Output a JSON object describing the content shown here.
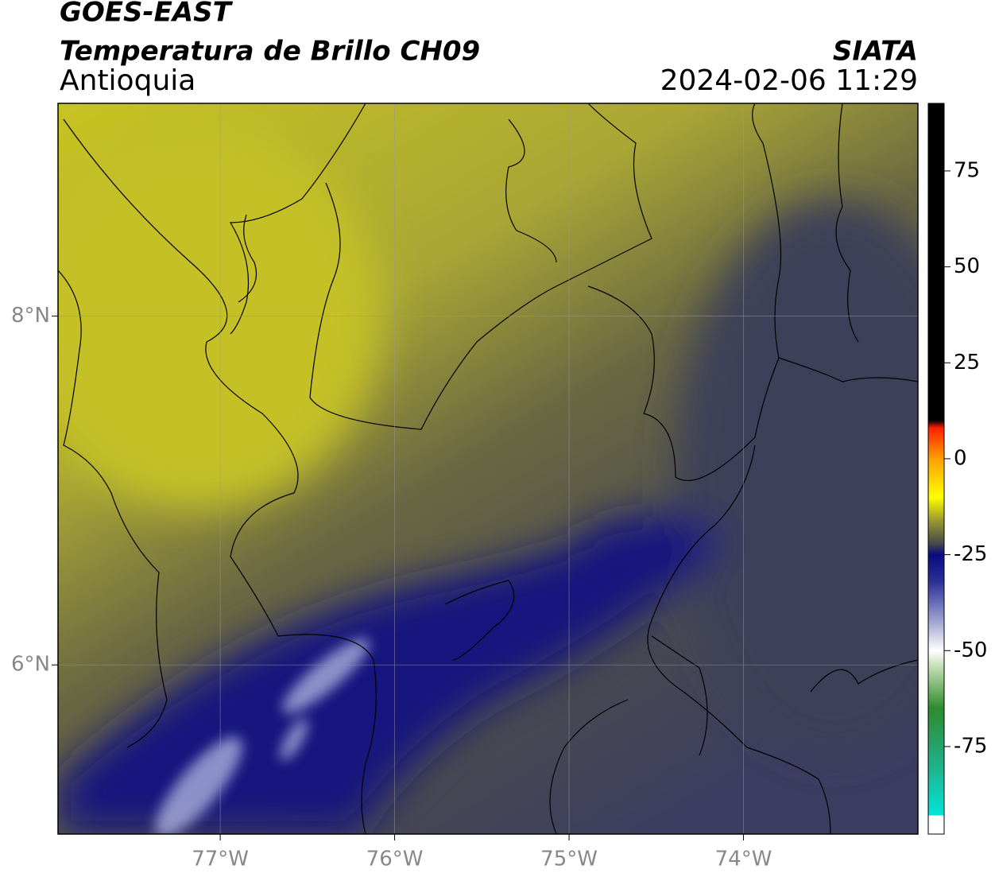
{
  "chart_data": {
    "type": "map",
    "title": "GOES-EAST",
    "subtitle": "Temperatura de Brillo CH09",
    "region": "Antioquia",
    "source": "SIATA",
    "timestamp": "2024-02-06 11:29",
    "xlim": [
      -77.93,
      -73.0
    ],
    "ylim": [
      5.03,
      9.22
    ],
    "xticks": [
      {
        "value": -77,
        "label": "77°W"
      },
      {
        "value": -76,
        "label": "76°W"
      },
      {
        "value": -75,
        "label": "75°W"
      },
      {
        "value": -74,
        "label": "74°W"
      }
    ],
    "yticks": [
      {
        "value": 8,
        "label": "8°N"
      },
      {
        "value": 6,
        "label": "6°N"
      }
    ],
    "grid": true,
    "clim": [
      -97.8,
      92.6
    ],
    "cticks": [
      75,
      50,
      25,
      0,
      -25,
      -50,
      -75
    ],
    "colormap": [
      {
        "value": -97.8,
        "color": "#ffffff"
      },
      {
        "value": -93,
        "color": "#ffffff"
      },
      {
        "value": -92.9,
        "color": "#00e5d8"
      },
      {
        "value": -80,
        "color": "#22b08a"
      },
      {
        "value": -65,
        "color": "#2e8b2e"
      },
      {
        "value": -55,
        "color": "#b8d8a8"
      },
      {
        "value": -50,
        "color": "#ffffff"
      },
      {
        "value": -42,
        "color": "#9aa0d0"
      },
      {
        "value": -32,
        "color": "#2c2f96"
      },
      {
        "value": -25,
        "color": "#0a0a80"
      },
      {
        "value": -22,
        "color": "#4a4a48"
      },
      {
        "value": -16,
        "color": "#9a9a30"
      },
      {
        "value": -10,
        "color": "#ffff00"
      },
      {
        "value": 0,
        "color": "#ffa000"
      },
      {
        "value": 8,
        "color": "#ff2000"
      },
      {
        "value": 10,
        "color": "#000000"
      },
      {
        "value": 92.6,
        "color": "#000000"
      }
    ]
  }
}
